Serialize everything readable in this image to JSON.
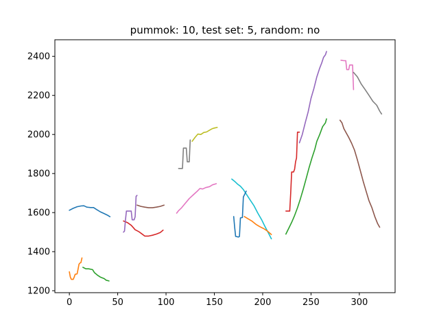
{
  "chart_data": {
    "type": "line",
    "title": "pummok: 10, test set: 5, random: no",
    "xlabel": "",
    "ylabel": "",
    "xlim": [
      -15,
      337
    ],
    "ylim": [
      1190,
      2485
    ],
    "xticks": [
      0,
      50,
      100,
      150,
      200,
      250,
      300
    ],
    "yticks": [
      1200,
      1400,
      1600,
      1800,
      2000,
      2200,
      2400
    ],
    "grid": false,
    "legend": "none",
    "series": [
      {
        "color": "#1f77b4",
        "points": [
          [
            0,
            1612
          ],
          [
            4,
            1622
          ],
          [
            8,
            1630
          ],
          [
            12,
            1634
          ],
          [
            15,
            1635
          ],
          [
            18,
            1628
          ],
          [
            22,
            1626
          ],
          [
            25,
            1626
          ],
          [
            28,
            1616
          ],
          [
            32,
            1604
          ],
          [
            36,
            1595
          ],
          [
            40,
            1585
          ],
          [
            42,
            1579
          ]
        ]
      },
      {
        "color": "#ff7f0e",
        "points": [
          [
            0,
            1297
          ],
          [
            1,
            1270
          ],
          [
            2,
            1258
          ],
          [
            4,
            1258
          ],
          [
            5,
            1270
          ],
          [
            6,
            1284
          ],
          [
            8,
            1286
          ],
          [
            9,
            1310
          ],
          [
            10,
            1336
          ],
          [
            11,
            1342
          ],
          [
            12,
            1344
          ],
          [
            13,
            1368
          ]
        ]
      },
      {
        "color": "#2ca02c",
        "points": [
          [
            14,
            1320
          ],
          [
            17,
            1312
          ],
          [
            20,
            1312
          ],
          [
            24,
            1308
          ],
          [
            26,
            1292
          ],
          [
            29,
            1280
          ],
          [
            32,
            1270
          ],
          [
            36,
            1262
          ],
          [
            38,
            1254
          ],
          [
            41,
            1250
          ]
        ]
      },
      {
        "color": "#d62728",
        "points": [
          [
            56,
            1557
          ],
          [
            60,
            1549
          ],
          [
            64,
            1535
          ],
          [
            66,
            1524
          ],
          [
            68,
            1512
          ],
          [
            72,
            1502
          ],
          [
            75,
            1491
          ],
          [
            78,
            1480
          ],
          [
            82,
            1480
          ],
          [
            86,
            1484
          ],
          [
            90,
            1490
          ],
          [
            94,
            1498
          ],
          [
            97,
            1510
          ]
        ]
      },
      {
        "color": "#9467bd",
        "points": [
          [
            56,
            1500
          ],
          [
            57,
            1505
          ],
          [
            58,
            1562
          ],
          [
            59,
            1608
          ],
          [
            62,
            1608
          ],
          [
            64,
            1608
          ],
          [
            65,
            1563
          ],
          [
            67,
            1563
          ],
          [
            68,
            1578
          ],
          [
            69,
            1683
          ],
          [
            70,
            1688
          ]
        ]
      },
      {
        "color": "#8c564b",
        "points": [
          [
            70,
            1638
          ],
          [
            74,
            1632
          ],
          [
            78,
            1628
          ],
          [
            82,
            1625
          ],
          [
            86,
            1625
          ],
          [
            90,
            1628
          ],
          [
            94,
            1632
          ],
          [
            98,
            1638
          ]
        ]
      },
      {
        "color": "#e377c2",
        "points": [
          [
            111,
            1597
          ],
          [
            113,
            1610
          ],
          [
            116,
            1624
          ],
          [
            120,
            1648
          ],
          [
            124,
            1672
          ],
          [
            128,
            1690
          ],
          [
            132,
            1708
          ],
          [
            135,
            1723
          ],
          [
            138,
            1721
          ],
          [
            141,
            1728
          ],
          [
            145,
            1733
          ],
          [
            148,
            1742
          ],
          [
            152,
            1748
          ]
        ]
      },
      {
        "color": "#7f7f7f",
        "points": [
          [
            113,
            1826
          ],
          [
            117,
            1826
          ],
          [
            118,
            1930
          ],
          [
            121,
            1930
          ],
          [
            122,
            1860
          ],
          [
            124,
            1860
          ],
          [
            125,
            1972
          ]
        ]
      },
      {
        "color": "#bcbd22",
        "points": [
          [
            127,
            1965
          ],
          [
            130,
            1985
          ],
          [
            133,
            2002
          ],
          [
            136,
            2000
          ],
          [
            139,
            2010
          ],
          [
            142,
            2013
          ],
          [
            145,
            2022
          ],
          [
            148,
            2030
          ],
          [
            150,
            2033
          ],
          [
            153,
            2036
          ]
        ]
      },
      {
        "color": "#17becf",
        "points": [
          [
            168,
            1772
          ],
          [
            171,
            1760
          ],
          [
            174,
            1746
          ],
          [
            177,
            1735
          ],
          [
            180,
            1718
          ],
          [
            183,
            1695
          ],
          [
            187,
            1665
          ],
          [
            191,
            1635
          ],
          [
            195,
            1597
          ],
          [
            199,
            1563
          ],
          [
            202,
            1532
          ],
          [
            206,
            1495
          ],
          [
            209,
            1466
          ]
        ]
      },
      {
        "color": "#1f77b4",
        "points": [
          [
            170,
            1580
          ],
          [
            171,
            1525
          ],
          [
            172,
            1478
          ],
          [
            175,
            1475
          ],
          [
            176,
            1478
          ],
          [
            177,
            1573
          ],
          [
            179,
            1575
          ],
          [
            180,
            1680
          ],
          [
            183,
            1710
          ]
        ]
      },
      {
        "color": "#ff7f0e",
        "points": [
          [
            181,
            1580
          ],
          [
            185,
            1568
          ],
          [
            189,
            1556
          ],
          [
            193,
            1540
          ],
          [
            197,
            1528
          ],
          [
            201,
            1518
          ],
          [
            205,
            1505
          ],
          [
            209,
            1488
          ]
        ]
      },
      {
        "color": "#2ca02c",
        "points": [
          [
            224,
            1490
          ],
          [
            227,
            1520
          ],
          [
            230,
            1550
          ],
          [
            233,
            1585
          ],
          [
            236,
            1625
          ],
          [
            239,
            1670
          ],
          [
            242,
            1720
          ],
          [
            245,
            1775
          ],
          [
            248,
            1830
          ],
          [
            251,
            1880
          ],
          [
            254,
            1925
          ],
          [
            256,
            1965
          ],
          [
            259,
            2000
          ],
          [
            262,
            2040
          ],
          [
            265,
            2060
          ],
          [
            266,
            2080
          ]
        ]
      },
      {
        "color": "#d62728",
        "points": [
          [
            224,
            1608
          ],
          [
            228,
            1608
          ],
          [
            229,
            1700
          ],
          [
            230,
            1808
          ],
          [
            232,
            1808
          ],
          [
            233,
            1822
          ],
          [
            234,
            1860
          ],
          [
            235,
            1880
          ],
          [
            236,
            2012
          ],
          [
            238,
            2012
          ]
        ]
      },
      {
        "color": "#9467bd",
        "points": [
          [
            238,
            1957
          ],
          [
            241,
            2000
          ],
          [
            244,
            2060
          ],
          [
            247,
            2115
          ],
          [
            250,
            2185
          ],
          [
            253,
            2235
          ],
          [
            256,
            2295
          ],
          [
            259,
            2340
          ],
          [
            261,
            2365
          ],
          [
            263,
            2395
          ],
          [
            265,
            2408
          ],
          [
            266,
            2425
          ]
        ]
      },
      {
        "color": "#8c564b",
        "points": [
          [
            280,
            2073
          ],
          [
            282,
            2060
          ],
          [
            284,
            2030
          ],
          [
            286,
            2012
          ],
          [
            289,
            1985
          ],
          [
            292,
            1955
          ],
          [
            295,
            1920
          ],
          [
            298,
            1870
          ],
          [
            301,
            1815
          ],
          [
            304,
            1760
          ],
          [
            307,
            1710
          ],
          [
            310,
            1660
          ],
          [
            313,
            1625
          ],
          [
            316,
            1580
          ],
          [
            319,
            1543
          ],
          [
            321,
            1525
          ]
        ]
      },
      {
        "color": "#e377c2",
        "points": [
          [
            281,
            2380
          ],
          [
            284,
            2378
          ],
          [
            286,
            2378
          ],
          [
            287,
            2332
          ],
          [
            289,
            2332
          ],
          [
            290,
            2356
          ],
          [
            293,
            2356
          ],
          [
            294,
            2230
          ]
        ]
      },
      {
        "color": "#7f7f7f",
        "points": [
          [
            294,
            2318
          ],
          [
            298,
            2295
          ],
          [
            302,
            2258
          ],
          [
            306,
            2230
          ],
          [
            310,
            2200
          ],
          [
            314,
            2170
          ],
          [
            318,
            2150
          ],
          [
            321,
            2120
          ],
          [
            323,
            2105
          ]
        ]
      }
    ]
  }
}
